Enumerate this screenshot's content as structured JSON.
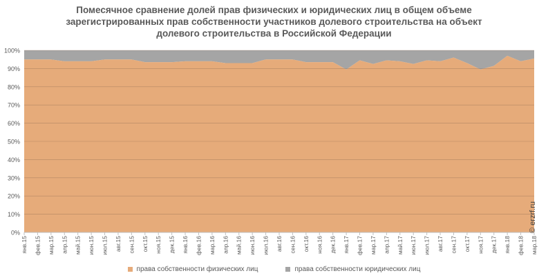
{
  "chart_data": {
    "type": "area",
    "title_lines": [
      "Помесячное сравнение долей прав физических и юридических лиц в общем объеме",
      "зарегистрированных прав собственности участников долевого строительства на объект",
      "долевого строительства в Российской Федерации"
    ],
    "categories": [
      "янв.15",
      "фев.15",
      "мар.15",
      "апр.15",
      "май.15",
      "июн.15",
      "июл.15",
      "авг.15",
      "сен.15",
      "окт.15",
      "ноя.15",
      "дек.15",
      "янв.16",
      "фев.16",
      "мар.16",
      "апр.16",
      "май.16",
      "июн.16",
      "июл.16",
      "авг.16",
      "сен.16",
      "окт.16",
      "ноя.16",
      "дек.16",
      "янв.17",
      "фев.17",
      "мар.17",
      "апр.17",
      "май.17",
      "июн.17",
      "июл.17",
      "авг.17",
      "сен.17",
      "окт.17",
      "ноя.17",
      "дек.17",
      "янв.18",
      "фев.18",
      "мар.18"
    ],
    "series": [
      {
        "name": "права собственности физических лиц",
        "color": "#e6ab7a",
        "values": [
          95,
          95,
          95,
          94,
          94,
          94,
          95,
          95,
          95,
          93.5,
          93.5,
          93.5,
          94,
          94,
          94,
          93,
          93,
          93,
          95,
          95,
          95,
          93.5,
          93.5,
          93.5,
          89.5,
          94.5,
          92.5,
          94.5,
          94,
          92.5,
          94.5,
          94,
          96,
          93,
          89.5,
          91.5,
          97,
          94,
          95.5
        ]
      },
      {
        "name": "права собственности юридических лиц",
        "color": "#a5a5a5",
        "values": [
          5,
          5,
          5,
          6,
          6,
          6,
          5,
          5,
          5,
          6.5,
          6.5,
          6.5,
          6,
          6,
          6,
          7,
          7,
          7,
          5,
          5,
          5,
          6.5,
          6.5,
          6.5,
          10.5,
          5.5,
          7.5,
          5.5,
          6,
          7.5,
          5.5,
          6,
          4,
          7,
          10.5,
          8.5,
          3,
          6,
          4.5
        ]
      }
    ],
    "yticks": [
      "0%",
      "10%",
      "20%",
      "30%",
      "40%",
      "50%",
      "60%",
      "70%",
      "80%",
      "90%",
      "100%"
    ],
    "ylim": [
      0,
      100
    ],
    "stacked": true,
    "percent": true,
    "grid": true,
    "legend_position": "bottom"
  },
  "watermark": "© erzrf.ru"
}
